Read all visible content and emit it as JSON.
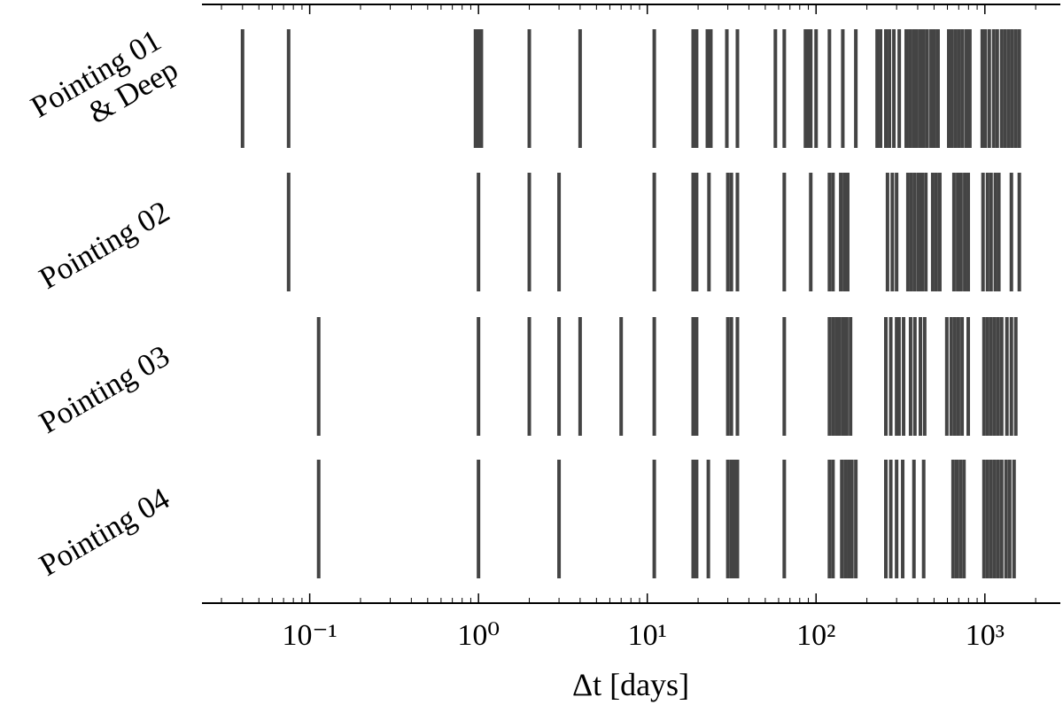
{
  "chart_data": {
    "type": "eventplot",
    "xlabel": "Δt [days]",
    "xscale": "log",
    "xlim": [
      0.023,
      2800
    ],
    "xticks": [
      {
        "value": 0.1,
        "label": "10⁻¹"
      },
      {
        "value": 1,
        "label": "10⁰"
      },
      {
        "value": 10,
        "label": "10¹"
      },
      {
        "value": 100,
        "label": "10²"
      },
      {
        "value": 1000,
        "label": "10³"
      }
    ],
    "minor_xticks": [
      0.03,
      0.04,
      0.05,
      0.06,
      0.07,
      0.08,
      0.09,
      0.2,
      0.3,
      0.4,
      0.5,
      0.6,
      0.7,
      0.8,
      0.9,
      2,
      3,
      4,
      5,
      6,
      7,
      8,
      9,
      20,
      30,
      40,
      50,
      60,
      70,
      80,
      90,
      200,
      300,
      400,
      500,
      600,
      700,
      800,
      900,
      2000
    ],
    "color": "#444444",
    "categories": [
      "Pointing 01\n& Deep",
      "Pointing 02",
      "Pointing 03",
      "Pointing 04"
    ],
    "events": [
      [
        0.04,
        0.075,
        0.96,
        0.98,
        1.0,
        1.02,
        1.04,
        2.0,
        4.0,
        11,
        18.7,
        19.6,
        22.7,
        23.8,
        29.6,
        34.2,
        57.4,
        64.8,
        86.5,
        89.8,
        93,
        100,
        120,
        144,
        172,
        230,
        241,
        259,
        272,
        289,
        311,
        342,
        359,
        377,
        395,
        415,
        434,
        455,
        480,
        503,
        528,
        611,
        640,
        672,
        704,
        738,
        778,
        815,
        965,
        1005,
        1062,
        1128,
        1184,
        1258,
        1319,
        1385,
        1452,
        1525,
        1600
      ],
      [
        0.075,
        1.0,
        2.0,
        3.0,
        11,
        18.7,
        19.6,
        23.2,
        30,
        31.5,
        34.2,
        64.8,
        93,
        120,
        126,
        140,
        147,
        154,
        265,
        283,
        300,
        350,
        367,
        385,
        405,
        425,
        447,
        491,
        515,
        541,
        656,
        690,
        722,
        760,
        797,
        975,
        1037,
        1088,
        1154,
        1210,
        1436,
        1600
      ],
      [
        0.113,
        1.0,
        2.0,
        3.0,
        4.0,
        7.0,
        11,
        18.7,
        19.6,
        30,
        31.5,
        34.2,
        64.8,
        120,
        126,
        132,
        138,
        145,
        152,
        160,
        259,
        277,
        300,
        310,
        330,
        363,
        385,
        415,
        440,
        595,
        632,
        664,
        697,
        733,
        797,
        988,
        1037,
        1088,
        1142,
        1198,
        1258,
        1351,
        1436,
        1525
      ],
      [
        0.113,
        1.0,
        3.0,
        11,
        18.7,
        19.6,
        23,
        30,
        31.5,
        33,
        34.2,
        64.8,
        120,
        126,
        142,
        149,
        156,
        163,
        172,
        259,
        277,
        300,
        326,
        380,
        434,
        648,
        681,
        716,
        752,
        988,
        1037,
        1088,
        1142,
        1198,
        1258,
        1335,
        1403,
        1489
      ]
    ]
  }
}
